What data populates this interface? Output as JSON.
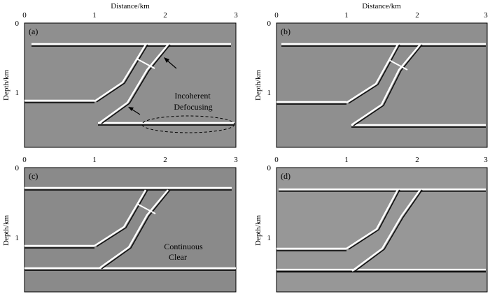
{
  "figure": {
    "top_xlabel_left": "Distance/km",
    "top_xlabel_right": "Distance/km",
    "ylabel": "Depth/km",
    "x_ticks": [
      "0",
      "1",
      "2",
      "3"
    ],
    "y_ticks_top": [
      "0",
      "1"
    ],
    "y_ticks_bottom": [
      "0",
      "1"
    ]
  },
  "panels": [
    {
      "id": "a",
      "label": "(a)",
      "annotation": [
        "Incoherent",
        "Defocusing"
      ]
    },
    {
      "id": "b",
      "label": "(b)",
      "annotation": []
    },
    {
      "id": "c",
      "label": "(c)",
      "annotation": [
        "Continuous",
        "Clear"
      ]
    },
    {
      "id": "d",
      "label": "(d)",
      "annotation": []
    }
  ],
  "colors": {
    "background_gray": "#8f8f8f",
    "reflector_white": "#ffffff",
    "reflector_black": "#101010"
  }
}
